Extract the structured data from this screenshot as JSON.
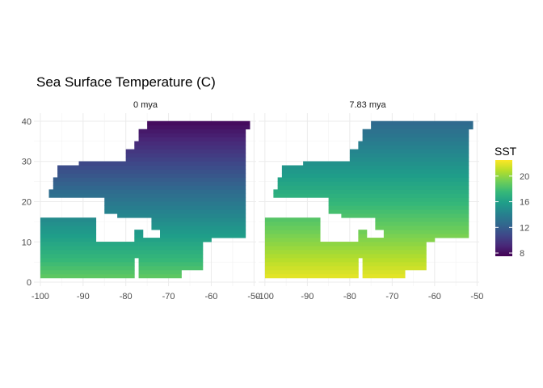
{
  "chart_data": {
    "type": "heatmap",
    "title": "Sea Surface Temperature (C)",
    "panels": [
      {
        "label": "0 mya",
        "temp_south": 18.8,
        "temp_north": 7.8
      },
      {
        "label": "7.83 mya",
        "temp_south": 22.0,
        "temp_north": 12.5
      }
    ],
    "x_ticks": [
      -100,
      -90,
      -80,
      -70,
      -60,
      -50
    ],
    "y_ticks": [
      0,
      10,
      20,
      30,
      40
    ],
    "x_tick_labels": [
      "-100",
      "-90",
      "-80",
      "-70",
      "-60",
      "-50"
    ],
    "y_tick_labels": [
      "0",
      "10",
      "20",
      "30",
      "40"
    ],
    "xlim": [
      -101.5,
      -49.5
    ],
    "ylim": [
      -1,
      42
    ],
    "grid": true,
    "legend": {
      "title": "SST",
      "position": "right",
      "min": 7.5,
      "max": 22.5,
      "ticks": [
        8,
        12,
        16,
        20
      ],
      "tick_labels": [
        "8",
        "12",
        "16",
        "20"
      ]
    },
    "colormap": "viridis",
    "colors": [
      "#440154",
      "#482878",
      "#3e4989",
      "#31688e",
      "#26828e",
      "#1f9e89",
      "#35b779",
      "#6ece58",
      "#b5de2b",
      "#fde725"
    ],
    "ocean_region": {
      "rows": [
        {
          "y": [
            1,
            6
          ],
          "x": [
            -100,
            -78
          ]
        },
        {
          "y": [
            6,
            10
          ],
          "x": [
            -100,
            -77
          ]
        },
        {
          "y": [
            10,
            16
          ],
          "x": [
            -100,
            -87
          ]
        },
        {
          "y": [
            1,
            3
          ],
          "x": [
            -77,
            -67
          ]
        },
        {
          "y": [
            3,
            10
          ],
          "x": [
            -77,
            -62
          ]
        },
        {
          "y": [
            10,
            11
          ],
          "x": [
            -78,
            -60
          ]
        },
        {
          "y": [
            11,
            13
          ],
          "x": [
            -78,
            -76
          ]
        },
        {
          "y": [
            11,
            13
          ],
          "x": [
            -72,
            -52
          ]
        },
        {
          "y": [
            13,
            16
          ],
          "x": [
            -74,
            -52
          ]
        },
        {
          "y": [
            16,
            17
          ],
          "x": [
            -82,
            -52
          ]
        },
        {
          "y": [
            17,
            21
          ],
          "x": [
            -85,
            -52
          ]
        },
        {
          "y": [
            21,
            23
          ],
          "x": [
            -98,
            -52
          ]
        },
        {
          "y": [
            23,
            26
          ],
          "x": [
            -97,
            -52
          ]
        },
        {
          "y": [
            26,
            29
          ],
          "x": [
            -96,
            -52
          ]
        },
        {
          "y": [
            29,
            30
          ],
          "x": [
            -91,
            -52
          ]
        },
        {
          "y": [
            30,
            31
          ],
          "x": [
            -80,
            -52
          ]
        },
        {
          "y": [
            31,
            33
          ],
          "x": [
            -80,
            -52
          ]
        },
        {
          "y": [
            33,
            35
          ],
          "x": [
            -78,
            -52
          ]
        },
        {
          "y": [
            35,
            38
          ],
          "x": [
            -77,
            -52
          ]
        },
        {
          "y": [
            38,
            40
          ],
          "x": [
            -75,
            -51
          ]
        }
      ]
    }
  }
}
